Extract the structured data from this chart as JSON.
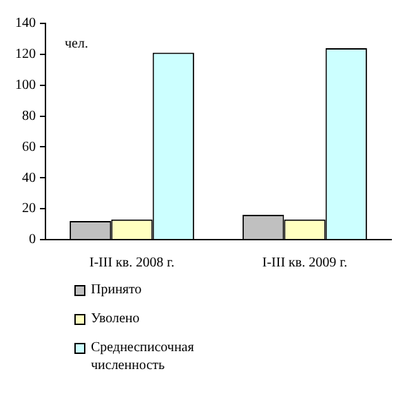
{
  "chart_data": {
    "type": "bar",
    "categories": [
      "I-III кв. 2008 г.",
      "I-III кв. 2009 г."
    ],
    "series": [
      {
        "name": "Принято",
        "color": "#c0c0c0",
        "values": [
          12,
          16
        ]
      },
      {
        "name": "Уволено",
        "color": "#ffffc0",
        "values": [
          13,
          13
        ]
      },
      {
        "name": "Среднесписочная численность",
        "color": "#ccffff",
        "values": [
          121,
          124
        ]
      }
    ],
    "ylim": [
      0,
      140
    ],
    "yticks": [
      0,
      20,
      40,
      60,
      80,
      100,
      120,
      140
    ],
    "grid": false,
    "legend": "bottom",
    "annotations": [
      "чел."
    ]
  }
}
